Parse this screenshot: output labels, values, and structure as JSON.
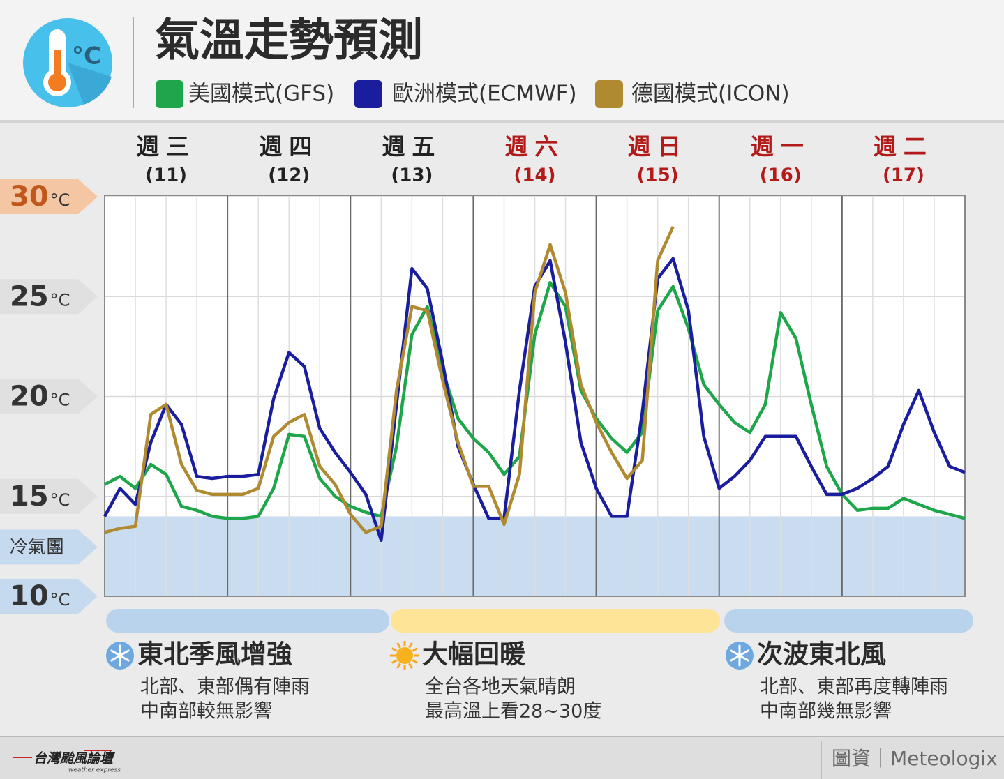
{
  "header": {
    "title": "氣溫走勢預測"
  },
  "chart_data": {
    "type": "line",
    "y_unit": "°C",
    "days": [
      {
        "name": "週三",
        "date": "(11)",
        "weekend": false
      },
      {
        "name": "週四",
        "date": "(12)",
        "weekend": false
      },
      {
        "name": "週五",
        "date": "(13)",
        "weekend": false
      },
      {
        "name": "週六",
        "date": "(14)",
        "weekend": true
      },
      {
        "name": "週日",
        "date": "(15)",
        "weekend": true
      },
      {
        "name": "週一",
        "date": "(16)",
        "weekend": true
      },
      {
        "name": "週二",
        "date": "(17)",
        "weekend": true
      }
    ],
    "weekday_color": "#222222",
    "weekend_color": "#b31b1b",
    "x": [
      0,
      3,
      6,
      9,
      12,
      15,
      18,
      21,
      24,
      27,
      30,
      33,
      36,
      39,
      42,
      45,
      48,
      51,
      54,
      57,
      60,
      63,
      66,
      69,
      72,
      75,
      78,
      81,
      84,
      87,
      90,
      93,
      96,
      99,
      102,
      105,
      108,
      111,
      114,
      117,
      120,
      123,
      126,
      129,
      132,
      135,
      138,
      141,
      144,
      147,
      150,
      153,
      156,
      159,
      162,
      165,
      168
    ],
    "xlim": [
      0,
      168
    ],
    "xticks": [
      0,
      24,
      48,
      72,
      96,
      120,
      144,
      168
    ],
    "ylim": [
      10,
      30
    ],
    "yticks": [
      10,
      15,
      20,
      25,
      30
    ],
    "grid": true,
    "cold_band": {
      "label": "冷氣團",
      "below": 14,
      "color": "#cadcef"
    },
    "series": [
      {
        "name": "美國模式(GFS)",
        "color": "#1fa64a",
        "values": [
          15.6,
          16.0,
          15.4,
          16.6,
          16.1,
          14.5,
          14.3,
          14.0,
          13.9,
          13.9,
          14.0,
          15.4,
          18.1,
          18.0,
          15.9,
          15.0,
          14.5,
          14.2,
          14.0,
          17.5,
          23.1,
          24.5,
          21.3,
          18.9,
          17.9,
          17.2,
          16.1,
          17.0,
          23.1,
          25.7,
          24.5,
          20.3,
          18.9,
          17.9,
          17.2,
          18.2,
          24.3,
          25.5,
          23.4,
          20.6,
          19.6,
          18.7,
          18.2,
          19.6,
          24.2,
          22.9,
          19.6,
          16.5,
          15.1,
          14.3,
          14.4,
          14.4,
          14.9,
          14.6,
          14.3,
          14.1,
          13.9
        ]
      },
      {
        "name": "歐洲模式(ECMWF)",
        "color": "#1a1d9e",
        "values": [
          14.0,
          15.4,
          14.6,
          17.7,
          19.6,
          18.6,
          16.0,
          15.9,
          16.0,
          16.0,
          16.1,
          19.9,
          22.2,
          21.5,
          18.4,
          17.2,
          16.2,
          15.1,
          12.8,
          19.6,
          26.4,
          25.4,
          21.7,
          17.5,
          15.6,
          13.9,
          13.9,
          20.3,
          25.5,
          26.8,
          22.7,
          17.7,
          15.4,
          14.0,
          14.0,
          19.2,
          25.9,
          26.9,
          24.3,
          18.0,
          15.4,
          16.0,
          16.8,
          18.0,
          18.0,
          18.0,
          16.5,
          15.1,
          15.1,
          15.4,
          15.9,
          16.5,
          18.6,
          20.3,
          18.2,
          16.5,
          16.2
        ]
      },
      {
        "name": "德國模式(ICON)",
        "color": "#b08a30",
        "values": [
          13.2,
          13.4,
          13.5,
          19.1,
          19.6,
          16.6,
          15.3,
          15.1,
          15.1,
          15.1,
          15.4,
          18.0,
          18.7,
          19.1,
          16.5,
          15.6,
          14.1,
          13.2,
          13.5,
          20.3,
          24.5,
          24.3,
          20.8,
          17.7,
          15.5,
          15.5,
          13.6,
          16.1,
          25.2,
          27.6,
          25.2,
          20.6,
          18.7,
          17.2,
          15.9,
          16.8,
          26.8,
          28.5,
          null,
          null,
          null,
          null,
          null,
          null,
          null,
          null,
          null,
          null,
          null,
          null,
          null,
          null,
          null,
          null,
          null,
          null,
          null
        ]
      }
    ]
  },
  "phases": [
    {
      "title": "東北季風增強",
      "lines": [
        "北部、東部偶有陣雨",
        "中南部較無影響"
      ],
      "icon": "snow",
      "color": "#bad3ec"
    },
    {
      "title": "大幅回暖",
      "lines": [
        "全台各地天氣晴朗",
        "最高溫上看28~30度"
      ],
      "icon": "sun",
      "color": "#fde497"
    },
    {
      "title": "次波東北風",
      "lines": [
        "北部、東部再度轉陣雨",
        "中南部幾無影響"
      ],
      "icon": "snow",
      "color": "#bad3ec"
    }
  ],
  "footer": {
    "logo": "台灣颱風論壇",
    "logo_sub": "weather express",
    "source": "圖資｜Meteologix"
  }
}
